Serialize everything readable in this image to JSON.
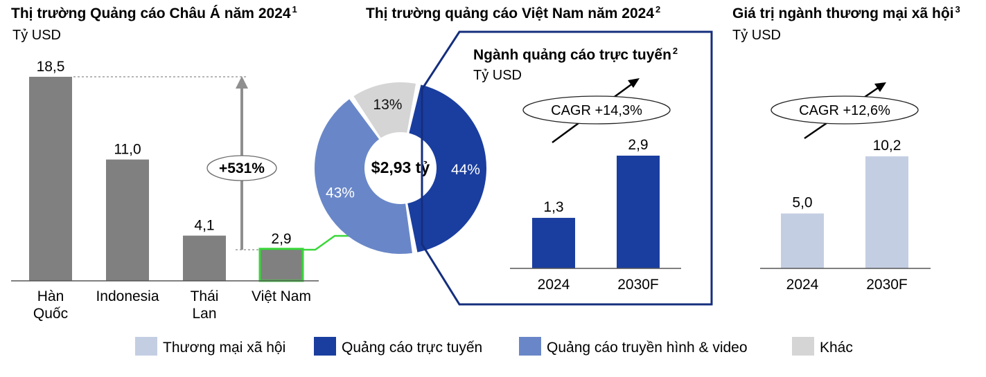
{
  "colors": {
    "bar_gray": "#808080",
    "online_ads": "#1a3e9f",
    "tv_video": "#6987c8",
    "social_commerce": "#c4cee3",
    "other": "#d5d5d5",
    "highlight_green": "#39d739",
    "frame_navy": "#142e7e"
  },
  "chart_data": [
    {
      "type": "bar",
      "title": "Thị trường Quảng cáo Châu Á năm 2024",
      "title_sup": "1",
      "unit": "Tỷ USD",
      "categories": [
        [
          "Hàn",
          "Quốc"
        ],
        [
          "Indonesia"
        ],
        [
          "Thái",
          "Lan"
        ],
        [
          "Việt Nam"
        ]
      ],
      "values": [
        18.5,
        11.0,
        4.1,
        2.9
      ],
      "value_labels": [
        "18,5",
        "11,0",
        "4,1",
        "2,9"
      ],
      "highlighted_category": "Việt Nam",
      "growth_annotation": "+531%",
      "ylim": [
        0,
        18.5
      ]
    },
    {
      "type": "pie",
      "title": "Thị trường quảng cáo Việt Nam năm 2024",
      "title_sup": "2",
      "center_label": "$2,93 tỷ",
      "slices": [
        {
          "series": "Quảng cáo trực tuyến",
          "value": 44,
          "label": "44%",
          "color": "#1a3e9f"
        },
        {
          "series": "Quảng cáo truyền hình & video",
          "value": 43,
          "label": "43%",
          "color": "#6987c8"
        },
        {
          "series": "Khác",
          "value": 13,
          "label": "13%",
          "color": "#d5d5d5"
        }
      ]
    },
    {
      "type": "bar",
      "title": "Ngành quảng cáo trực tuyến",
      "title_sup": "2",
      "unit": "Tỷ USD",
      "categories": [
        "2024",
        "2030F"
      ],
      "values": [
        1.3,
        2.9
      ],
      "value_labels": [
        "1,3",
        "2,9"
      ],
      "annotation": "CAGR +14,3%",
      "color": "#1a3e9f"
    },
    {
      "type": "bar",
      "title": "Giá trị ngành thương mại xã hội",
      "title_sup": "3",
      "unit": "Tỷ USD",
      "categories": [
        "2024",
        "2030F"
      ],
      "values": [
        5.0,
        10.2
      ],
      "value_labels": [
        "5,0",
        "10,2"
      ],
      "annotation": "CAGR +12,6%",
      "color": "#c4cee3"
    }
  ],
  "legend": [
    {
      "label": "Thương mại xã hội",
      "color": "#c4cee3"
    },
    {
      "label": "Quảng cáo trực tuyến",
      "color": "#1a3e9f"
    },
    {
      "label": "Quảng cáo truyền hình & video",
      "color": "#6987c8"
    },
    {
      "label": "Khác",
      "color": "#d5d5d5"
    }
  ]
}
